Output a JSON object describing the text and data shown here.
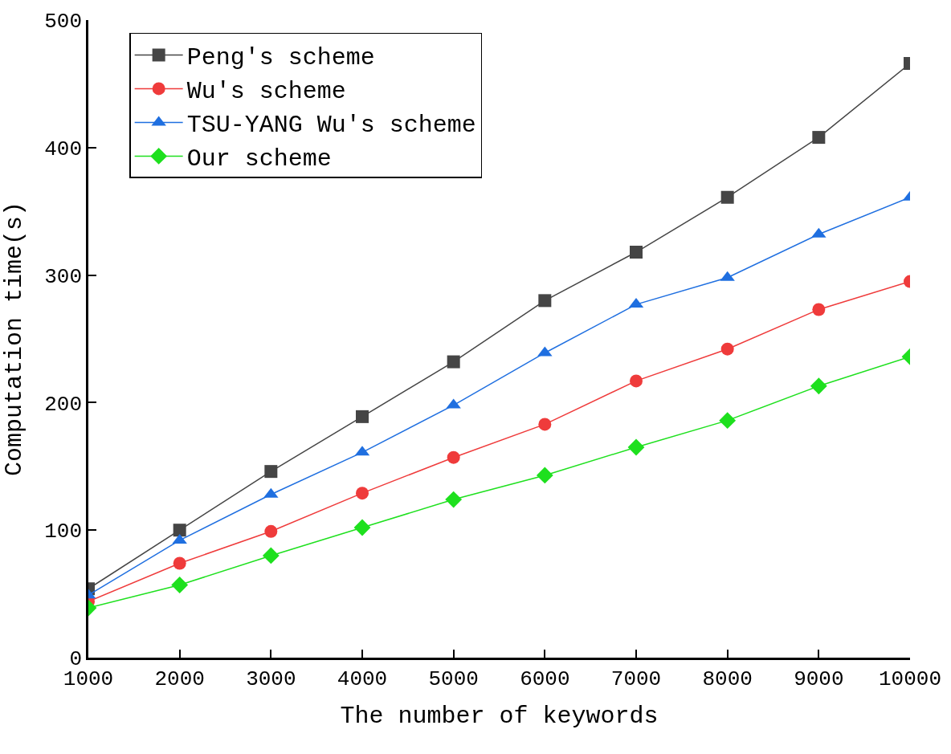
{
  "chart_data": {
    "type": "line",
    "xlabel": "The number of keywords",
    "ylabel": "Computation time(s)",
    "x": [
      1000,
      2000,
      3000,
      4000,
      5000,
      6000,
      7000,
      8000,
      9000,
      10000
    ],
    "xlim": [
      1000,
      10000
    ],
    "xticks": [
      1000,
      2000,
      3000,
      4000,
      5000,
      6000,
      7000,
      8000,
      9000,
      10000
    ],
    "ylim": [
      0,
      500
    ],
    "yticks": [
      0,
      100,
      200,
      300,
      400,
      500
    ],
    "grid": false,
    "legend": "top left",
    "series": [
      {
        "name": "Peng's scheme",
        "color": "#454545",
        "marker": "square",
        "values": [
          54,
          100,
          146,
          189,
          232,
          280,
          318,
          361,
          408,
          466
        ]
      },
      {
        "name": "Wu's scheme",
        "color": "#ef3b3b",
        "marker": "circle",
        "values": [
          44,
          74,
          99,
          129,
          157,
          183,
          217,
          242,
          273,
          295
        ]
      },
      {
        "name": "TSU-YANG Wu's scheme",
        "color": "#1f6fe0",
        "marker": "triangle",
        "values": [
          49,
          92,
          128,
          161,
          198,
          239,
          277,
          298,
          332,
          361
        ]
      },
      {
        "name": "Our scheme",
        "color": "#1ee01e",
        "marker": "diamond",
        "values": [
          39,
          57,
          80,
          102,
          124,
          143,
          165,
          186,
          213,
          236
        ]
      }
    ]
  }
}
